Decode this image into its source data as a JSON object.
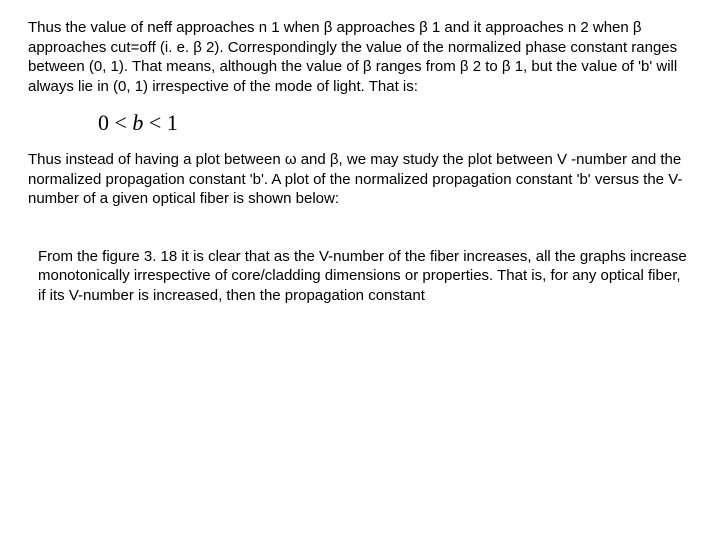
{
  "paragraphs": {
    "p1": "Thus the value of neff approaches n 1 when β approaches β 1 and it approaches n 2 when β approaches cut=off (i. e. β 2). Correspondingly the value of the normalized phase constant ranges between (0, 1). That means, although the value of β ranges from β 2 to β 1, but the value of 'b' will always lie in (0, 1) irrespective of the mode of light. That is:",
    "p2": "Thus instead of having a plot between ω and β, we may study the plot between V -number and the normalized propagation constant 'b'. A plot of the normalized propagation constant 'b' versus the V-number of a given optical fiber is shown below:",
    "p3": "From the figure 3. 18 it is clear that as the V-number of the fiber increases, all the graphs increase monotonically irrespective of core/cladding dimensions or properties. That is, for any optical fiber, if its V-number is increased, then the propagation constant"
  },
  "formula": {
    "lhs": "0",
    "op": "<",
    "mid": "b",
    "rhs": "1"
  },
  "style": {
    "body_font_size": 15,
    "formula_font_size": 22,
    "text_color": "#000000",
    "background_color": "#ffffff"
  }
}
